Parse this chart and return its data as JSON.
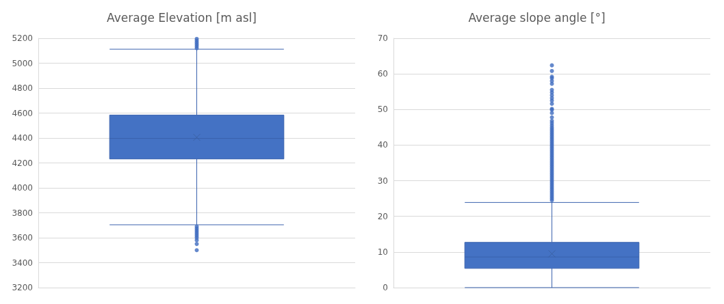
{
  "chart_data": [
    {
      "type": "box",
      "title": "Average Elevation [m asl]",
      "categories": [
        null
      ],
      "color": "#4472c4",
      "ylim": [
        3200,
        5200
      ],
      "yticks": [
        3200,
        3400,
        3600,
        3800,
        4000,
        4200,
        4400,
        4600,
        4800,
        5000,
        5200
      ],
      "grid": "y",
      "boxes": [
        {
          "low": 3704,
          "q1": 4232,
          "median": 4397,
          "q3": 4584,
          "high": 5112,
          "mean": 4405,
          "outliers": [
            3690,
            3675,
            3660,
            3645,
            3630,
            3615,
            3600,
            3580,
            3550,
            3500,
            5120,
            5135,
            5150,
            5165,
            5180,
            5195
          ]
        }
      ]
    },
    {
      "type": "box",
      "title": "Average slope angle [°]",
      "categories": [
        null
      ],
      "color": "#4472c4",
      "ylim": [
        0,
        70
      ],
      "yticks": [
        0,
        10,
        20,
        30,
        40,
        50,
        60,
        70
      ],
      "grid": "y",
      "boxes": [
        {
          "low": 0,
          "q1": 5.4,
          "median": 8.6,
          "q3": 12.7,
          "high": 23.9,
          "mean": 9.5,
          "outliers": [
            24.5,
            25,
            25.5,
            26,
            26.5,
            27,
            27.5,
            28,
            28.5,
            29,
            29.5,
            30,
            30.5,
            31,
            31.5,
            32,
            32.5,
            33,
            33.5,
            34,
            34.5,
            35,
            35.5,
            36,
            36.5,
            37,
            37.5,
            38,
            38.5,
            39,
            39.5,
            40,
            40.5,
            41,
            41.5,
            42,
            42.5,
            43,
            43.5,
            44,
            44.5,
            45,
            45.6,
            46.2,
            46.8,
            47.8,
            49,
            49.9,
            50.2,
            51.6,
            52.5,
            53.2,
            54,
            54.8,
            55.5,
            57.2,
            58,
            58.8,
            59.2,
            60.8,
            62.4
          ]
        }
      ]
    }
  ]
}
